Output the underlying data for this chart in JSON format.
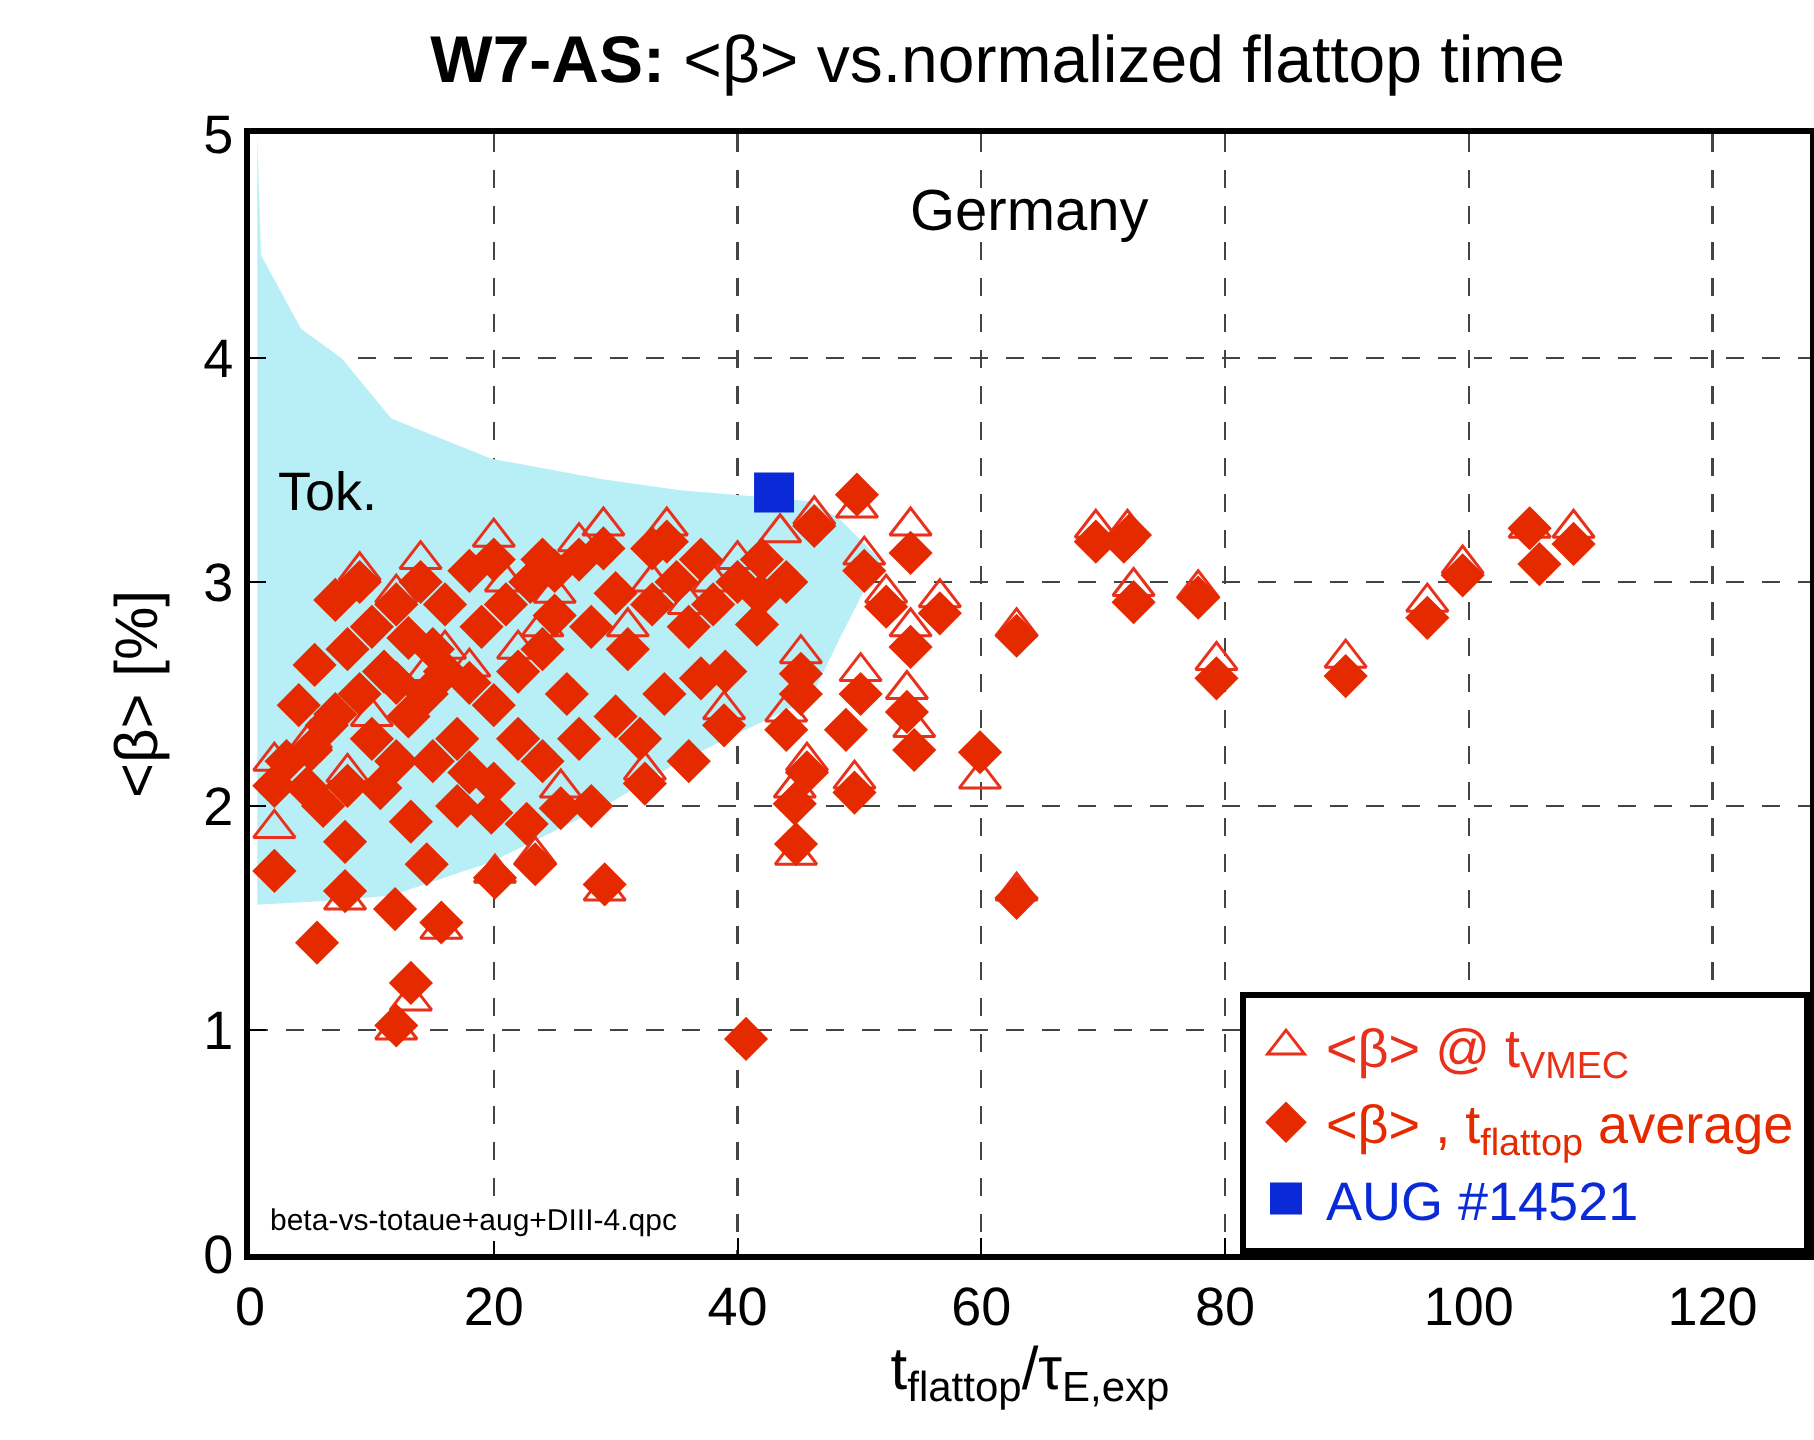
{
  "chart_data": {
    "type": "scatter",
    "title": "W7-AS: <β> vs.normalized flattop time",
    "xlabel": "t$_{flattop}$/τ$_{E,exp}$",
    "ylabel": "<β> [%]",
    "annotations": [
      "Germany",
      "Tok.",
      "beta-vs-totaue+aug+DIII-4.qpc"
    ],
    "xlim": [
      0,
      128
    ],
    "ylim": [
      0,
      5
    ],
    "xticks": [
      0,
      20,
      40,
      60,
      80,
      100,
      120
    ],
    "yticks": [
      0,
      1,
      2,
      3,
      4,
      5
    ],
    "grid": true,
    "legend": "bottom right",
    "series": [
      {
        "type": "line",
        "color": "#b8eef5",
        "x": [
          0.6,
          0.9,
          4.2,
          7.5,
          11.6,
          19.8,
          28.8,
          35.3,
          46,
          48.4,
          51.7
        ],
        "values": [
          null,
          null,
          null,
          null,
          null,
          null,
          null,
          null,
          null,
          null,
          null
        ],
        "upper": [
          5.0,
          4.46,
          4.13,
          4.0,
          3.73,
          3.55,
          3.46,
          3.41,
          3.36,
          3.28,
          3.1
        ],
        "lower": [
          1.56,
          1.56,
          1.57,
          1.58,
          1.6,
          1.75,
          1.99,
          2.2,
          2.48,
          2.75,
          3.1
        ]
      },
      {
        "name": "<β> @ t$_{VMEC}$",
        "color": "#e8301a",
        "marker": "triangle",
        "x": [
          69.4,
          72.0,
          72.5,
          77.8,
          79.3,
          89.9,
          96.6,
          99.5,
          105,
          108.6,
          62.9,
          59.9,
          62.9,
          49.8,
          46.3,
          54.2,
          34.2,
          43.5,
          50.4,
          52.2,
          56.6,
          54.2,
          45.2,
          50.1,
          53.9,
          54.5,
          44,
          45.7,
          49.6,
          44.7,
          38.9,
          32.4,
          44.8,
          29.1,
          2.0,
          13.2,
          12.0,
          15.7,
          7.8,
          20.1,
          23.4,
          25.5,
          2.0,
          8.0,
          14.5,
          16,
          18,
          22,
          24,
          21,
          27,
          29,
          33,
          36,
          40,
          9,
          12,
          14,
          20,
          5,
          10,
          25,
          31,
          38
        ],
        "values": [
          3.24,
          3.24,
          2.98,
          2.97,
          2.65,
          2.66,
          2.91,
          3.08,
          3.24,
          3.24,
          2.8,
          2.12,
          1.62,
          3.33,
          3.3,
          3.25,
          3.25,
          3.22,
          3.12,
          2.95,
          2.93,
          2.8,
          2.68,
          2.6,
          2.52,
          2.35,
          2.42,
          2.2,
          2.12,
          2.08,
          2.43,
          2.16,
          1.78,
          1.62,
          1.9,
          1.13,
          1.0,
          1.45,
          1.58,
          1.7,
          1.78,
          2.08,
          2.2,
          2.15,
          2.6,
          2.7,
          2.62,
          2.7,
          2.8,
          3.0,
          3.18,
          3.25,
          3.0,
          2.9,
          3.1,
          3.05,
          2.95,
          3.1,
          3.2,
          2.3,
          2.4,
          2.95,
          2.8,
          3.0
        ]
      },
      {
        "name": "<β> , t$_{flattop}$ average",
        "color": "#e62a00",
        "marker": "diamond",
        "x": [
          69.4,
          71.7,
          72.2,
          72.5,
          77.8,
          79.3,
          89.9,
          96.6,
          99.5,
          105,
          105.8,
          108.6,
          62.9,
          59.9,
          62.9,
          49.8,
          46.3,
          54.2,
          34.2,
          41.9,
          50.4,
          52.2,
          56.6,
          54.2,
          45.2,
          50.1,
          45.2,
          53.9,
          54.5,
          48.9,
          44,
          45.7,
          49.6,
          44.7,
          38.9,
          32.4,
          44.8,
          29.1,
          41.6,
          37,
          40.7,
          2.0,
          5.5,
          13.2,
          12.0,
          15.7,
          11.9,
          7.8,
          13.2,
          14.5,
          7.8,
          20.1,
          23.4,
          25.5,
          19.8,
          2.0,
          4.7,
          8.0,
          10.7,
          22.7,
          7.0,
          5.3,
          7.0,
          6.3,
          14.5,
          16,
          13,
          17,
          15,
          18,
          12,
          20,
          22,
          24,
          19,
          21,
          23,
          25,
          27,
          29,
          30,
          28,
          26,
          31,
          33,
          35,
          36,
          38,
          40,
          42,
          44,
          39,
          34,
          30,
          27,
          24,
          22,
          20,
          18,
          17,
          12,
          10,
          9,
          8,
          10,
          12,
          14,
          16,
          18,
          20,
          9,
          11,
          13,
          15,
          25,
          32,
          36,
          28,
          5,
          3,
          6,
          4,
          33,
          37,
          24
        ],
        "values": [
          3.18,
          3.18,
          3.21,
          2.91,
          2.93,
          2.57,
          2.58,
          2.84,
          3.03,
          3.24,
          3.08,
          3.17,
          2.76,
          2.24,
          1.59,
          3.39,
          3.25,
          3.13,
          3.18,
          2.94,
          3.05,
          2.89,
          2.86,
          2.71,
          2.59,
          2.5,
          2.5,
          2.42,
          2.25,
          2.34,
          2.34,
          2.15,
          2.06,
          2.01,
          2.36,
          2.1,
          1.83,
          1.65,
          2.81,
          2.57,
          0.96,
          1.71,
          1.39,
          1.21,
          1.02,
          1.48,
          1.54,
          1.62,
          1.93,
          1.74,
          1.84,
          1.68,
          1.74,
          1.99,
          1.97,
          2.09,
          2.08,
          2.09,
          2.08,
          1.92,
          2.41,
          2.63,
          2.92,
          2.36,
          2.5,
          2.6,
          2.4,
          2.3,
          2.7,
          2.55,
          2.55,
          2.45,
          2.6,
          2.7,
          2.8,
          2.9,
          3.0,
          3.05,
          3.1,
          3.15,
          2.95,
          2.8,
          2.5,
          2.7,
          2.9,
          3.0,
          2.8,
          2.9,
          3.0,
          3.1,
          3.0,
          2.6,
          2.5,
          2.4,
          2.3,
          2.2,
          2.3,
          2.1,
          2.15,
          2.0,
          2.2,
          2.3,
          2.5,
          2.7,
          2.8,
          2.9,
          3.0,
          2.9,
          3.05,
          3.1,
          3.0,
          2.6,
          2.75,
          2.2,
          2.85,
          2.3,
          2.2,
          2.0,
          2.25,
          2.2,
          2.0,
          2.45,
          3.15,
          3.1,
          3.1
        ]
      },
      {
        "name": "AUG #14521",
        "color": "#0a2ad8",
        "marker": "square",
        "x": [
          43
        ],
        "values": [
          3.4
        ]
      }
    ]
  }
}
